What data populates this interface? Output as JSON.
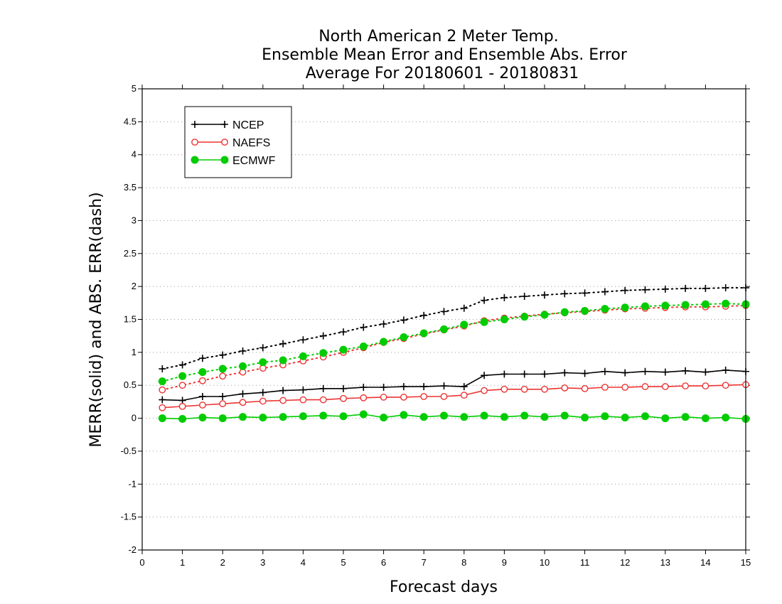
{
  "chart_data": {
    "type": "line",
    "title": [
      "North American 2 Meter Temp.",
      "Ensemble Mean Error and Ensemble Abs. Error",
      "Average For 20180601 - 20180831"
    ],
    "xlabel": "Forecast days",
    "ylabel": "MERR(solid) and ABS. ERR(dash)",
    "xlim": [
      0,
      15
    ],
    "ylim": [
      -2,
      5
    ],
    "xticks": [
      "0",
      "1",
      "2",
      "3",
      "4",
      "5",
      "6",
      "7",
      "8",
      "9",
      "10",
      "11",
      "12",
      "13",
      "14",
      "15"
    ],
    "yticks": [
      "-2",
      "-1.5",
      "-1",
      "-0.5",
      "0",
      "0.5",
      "1",
      "1.5",
      "2",
      "2.5",
      "3",
      "3.5",
      "4",
      "4.5",
      "5"
    ],
    "ytick_values": [
      -2,
      -1.5,
      -1,
      -0.5,
      0,
      0.5,
      1,
      1.5,
      2,
      2.5,
      3,
      3.5,
      4,
      4.5,
      5
    ],
    "grid": "horizontal dotted",
    "legend_position": "top-left",
    "x": [
      0.5,
      1,
      1.5,
      2,
      2.5,
      3,
      3.5,
      4,
      4.5,
      5,
      5.5,
      6,
      6.5,
      7,
      7.5,
      8,
      8.5,
      9,
      9.5,
      10,
      10.5,
      11,
      11.5,
      12,
      12.5,
      13,
      13.5,
      14,
      14.5,
      15
    ],
    "series": [
      {
        "name": "NCEP",
        "color": "#000000",
        "marker": "plus",
        "merr": [
          0.28,
          0.27,
          0.33,
          0.33,
          0.37,
          0.39,
          0.42,
          0.43,
          0.45,
          0.45,
          0.47,
          0.47,
          0.48,
          0.48,
          0.49,
          0.48,
          0.65,
          0.67,
          0.67,
          0.67,
          0.69,
          0.68,
          0.71,
          0.69,
          0.71,
          0.7,
          0.72,
          0.7,
          0.73,
          0.71
        ],
        "abs_err": [
          0.75,
          0.81,
          0.91,
          0.96,
          1.02,
          1.07,
          1.13,
          1.19,
          1.25,
          1.31,
          1.38,
          1.43,
          1.49,
          1.56,
          1.62,
          1.67,
          1.79,
          1.83,
          1.85,
          1.87,
          1.89,
          1.9,
          1.92,
          1.94,
          1.95,
          1.96,
          1.97,
          1.97,
          1.98,
          1.98
        ]
      },
      {
        "name": "NAEFS",
        "color": "#ee3333",
        "marker": "open-circle",
        "merr": [
          0.16,
          0.18,
          0.2,
          0.22,
          0.24,
          0.26,
          0.27,
          0.28,
          0.28,
          0.3,
          0.31,
          0.32,
          0.32,
          0.33,
          0.33,
          0.35,
          0.42,
          0.44,
          0.44,
          0.44,
          0.46,
          0.45,
          0.47,
          0.47,
          0.48,
          0.48,
          0.49,
          0.49,
          0.5,
          0.51
        ],
        "abs_err": [
          0.43,
          0.5,
          0.57,
          0.64,
          0.7,
          0.76,
          0.81,
          0.87,
          0.93,
          1.0,
          1.07,
          1.15,
          1.21,
          1.28,
          1.34,
          1.4,
          1.48,
          1.52,
          1.55,
          1.58,
          1.6,
          1.62,
          1.64,
          1.66,
          1.67,
          1.68,
          1.69,
          1.69,
          1.7,
          1.71
        ]
      },
      {
        "name": "ECMWF",
        "color": "#00cc00",
        "marker": "filled-circle",
        "merr": [
          0.0,
          -0.01,
          0.01,
          0.0,
          0.02,
          0.01,
          0.02,
          0.03,
          0.04,
          0.03,
          0.06,
          0.01,
          0.05,
          0.02,
          0.04,
          0.02,
          0.04,
          0.02,
          0.04,
          0.02,
          0.04,
          0.01,
          0.03,
          0.01,
          0.03,
          0.0,
          0.02,
          0.0,
          0.01,
          -0.01
        ],
        "abs_err": [
          0.56,
          0.64,
          0.7,
          0.75,
          0.79,
          0.85,
          0.88,
          0.94,
          0.99,
          1.04,
          1.09,
          1.16,
          1.23,
          1.29,
          1.35,
          1.42,
          1.46,
          1.5,
          1.54,
          1.57,
          1.61,
          1.63,
          1.66,
          1.68,
          1.7,
          1.71,
          1.72,
          1.73,
          1.74,
          1.73
        ]
      }
    ]
  }
}
